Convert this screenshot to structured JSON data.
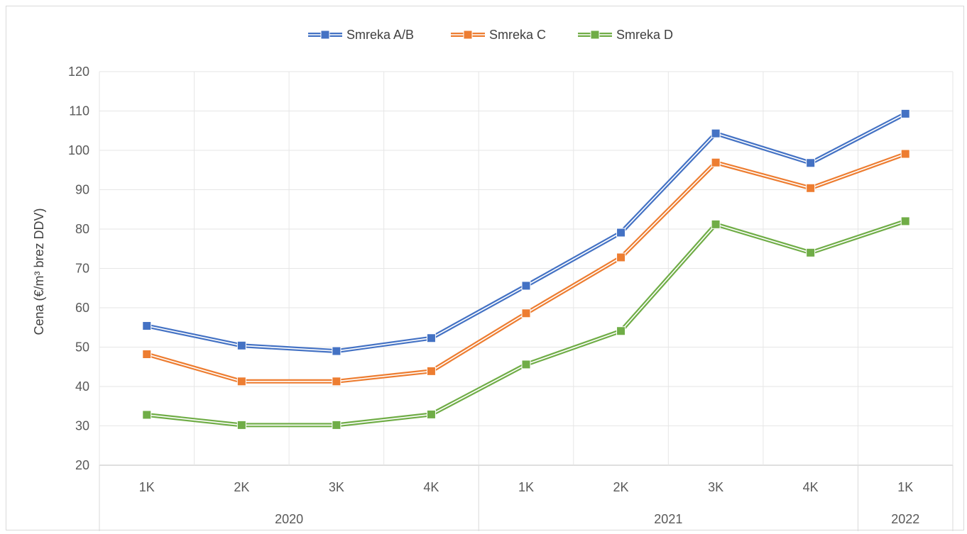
{
  "chart_data": {
    "type": "line",
    "title": "",
    "xlabel": "",
    "ylabel": "Cena (€/m³ brez DDV)",
    "ylim": [
      20,
      120
    ],
    "yticks": [
      20,
      30,
      40,
      50,
      60,
      70,
      80,
      90,
      100,
      110,
      120
    ],
    "grid": true,
    "legend_position": "top-center",
    "categories": [
      "1K",
      "2K",
      "3K",
      "4K",
      "1K",
      "2K",
      "3K",
      "4K",
      "1K"
    ],
    "groups": [
      {
        "label": "2020",
        "count": 4
      },
      {
        "label": "2021",
        "count": 4
      },
      {
        "label": "2022",
        "count": 1
      }
    ],
    "series": [
      {
        "name": "Smreka A/B",
        "color": "#4472c4",
        "values": [
          55.4,
          50.4,
          49.0,
          52.3,
          65.6,
          79.1,
          104.3,
          96.8,
          109.3
        ]
      },
      {
        "name": "Smreka C",
        "color": "#ed7d31",
        "values": [
          48.2,
          41.3,
          41.3,
          43.9,
          58.6,
          72.8,
          96.9,
          90.4,
          99.1
        ]
      },
      {
        "name": "Smreka D",
        "color": "#70ad47",
        "values": [
          32.8,
          30.2,
          30.2,
          32.9,
          45.6,
          54.1,
          81.2,
          74.0,
          82.0
        ]
      }
    ]
  }
}
